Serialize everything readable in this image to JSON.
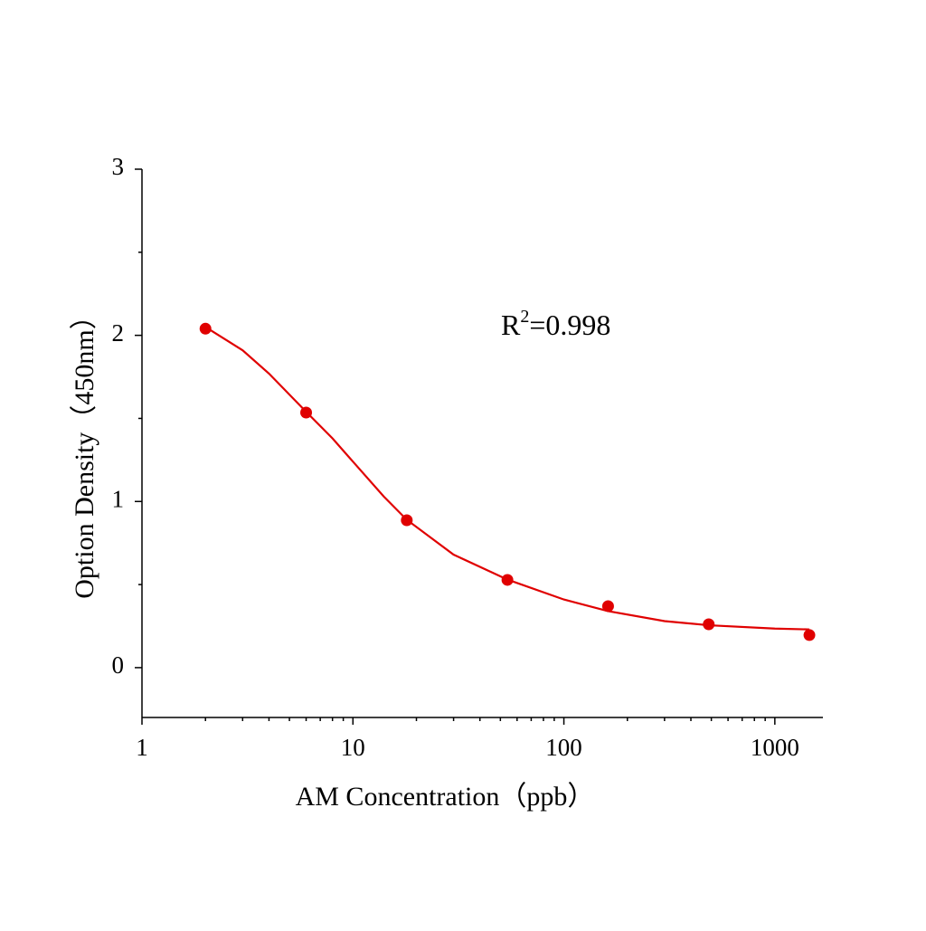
{
  "chart_data": {
    "type": "scatter",
    "x_label": "AM Concentration（ppb）",
    "y_label": "Option Density（450nm）",
    "annotation": [
      "R",
      "2",
      "=0.998"
    ],
    "color": "#e00000",
    "xlog": true,
    "xlim": [
      1,
      1690
    ],
    "xticks": [
      1,
      10,
      100,
      1000
    ],
    "xminorticks": [
      2,
      3,
      4,
      5,
      6,
      7,
      8,
      9,
      20,
      30,
      40,
      50,
      60,
      70,
      80,
      90,
      200,
      300,
      400,
      500,
      600,
      700,
      800,
      900
    ],
    "ylim": [
      -0.3,
      3
    ],
    "yticks": [
      0,
      1,
      2,
      3
    ],
    "yminorticks": [
      0.5,
      1.5,
      2.5
    ],
    "points": {
      "x": [
        2,
        6,
        18,
        54,
        162,
        486,
        1458
      ],
      "values": [
        2.04,
        1.535,
        0.887,
        0.528,
        0.37,
        0.261,
        0.196
      ]
    },
    "fit": {
      "x": [
        2,
        3,
        4,
        6,
        8,
        10,
        14,
        18,
        30,
        54,
        100,
        162,
        300,
        486,
        1000,
        1458
      ],
      "values": [
        2.05,
        1.91,
        1.77,
        1.54,
        1.38,
        1.24,
        1.03,
        0.89,
        0.68,
        0.53,
        0.41,
        0.34,
        0.28,
        0.255,
        0.235,
        0.23
      ]
    }
  }
}
